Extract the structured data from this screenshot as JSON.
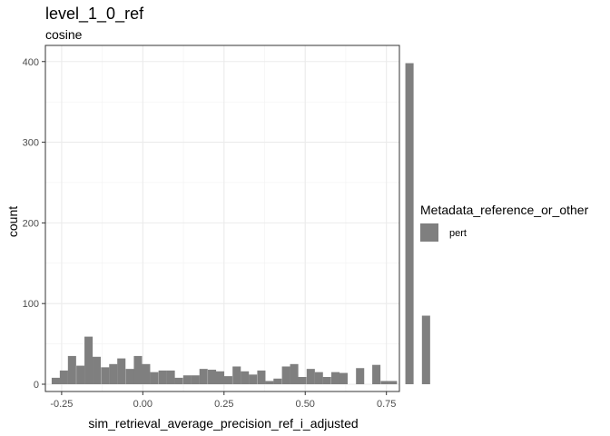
{
  "chart_data": {
    "type": "bar",
    "title": "level_1_0_ref",
    "subtitle": "cosine",
    "xlabel": "sim_retrieval_average_precision_ref_i_adjusted",
    "ylabel": "count",
    "xlim": [
      -0.3,
      0.79
    ],
    "ylim": [
      -9,
      420
    ],
    "xticks": [
      -0.25,
      0.0,
      0.25,
      0.5,
      0.75
    ],
    "xtick_labels": [
      "-0.25",
      "0.00",
      "0.25",
      "0.50",
      "0.75"
    ],
    "yticks": [
      0,
      100,
      200,
      300,
      400
    ],
    "ytick_labels": [
      "0",
      "100",
      "200",
      "300",
      "400"
    ],
    "grid": true,
    "bin_width": 0.0253,
    "legend": {
      "title": "Metadata_reference_or_other",
      "position": "right"
    },
    "series": [
      {
        "name": "pert",
        "color": "#7f7f7f",
        "bins": [
          {
            "x": -0.268,
            "y": 8
          },
          {
            "x": -0.243,
            "y": 17
          },
          {
            "x": -0.218,
            "y": 35
          },
          {
            "x": -0.192,
            "y": 23
          },
          {
            "x": -0.167,
            "y": 59
          },
          {
            "x": -0.142,
            "y": 34
          },
          {
            "x": -0.116,
            "y": 21
          },
          {
            "x": -0.091,
            "y": 25
          },
          {
            "x": -0.066,
            "y": 32
          },
          {
            "x": -0.04,
            "y": 19
          },
          {
            "x": -0.015,
            "y": 35
          },
          {
            "x": 0.01,
            "y": 25
          },
          {
            "x": 0.035,
            "y": 15
          },
          {
            "x": 0.061,
            "y": 17
          },
          {
            "x": 0.086,
            "y": 17
          },
          {
            "x": 0.111,
            "y": 8
          },
          {
            "x": 0.137,
            "y": 11
          },
          {
            "x": 0.162,
            "y": 11
          },
          {
            "x": 0.187,
            "y": 19
          },
          {
            "x": 0.213,
            "y": 18
          },
          {
            "x": 0.238,
            "y": 16
          },
          {
            "x": 0.263,
            "y": 10
          },
          {
            "x": 0.289,
            "y": 22
          },
          {
            "x": 0.314,
            "y": 16
          },
          {
            "x": 0.339,
            "y": 12
          },
          {
            "x": 0.365,
            "y": 17
          },
          {
            "x": 0.39,
            "y": 4
          },
          {
            "x": 0.415,
            "y": 7
          },
          {
            "x": 0.441,
            "y": 22
          },
          {
            "x": 0.466,
            "y": 25
          },
          {
            "x": 0.491,
            "y": 9
          },
          {
            "x": 0.517,
            "y": 19
          },
          {
            "x": 0.542,
            "y": 15
          },
          {
            "x": 0.567,
            "y": 9
          },
          {
            "x": 0.593,
            "y": 15
          },
          {
            "x": 0.618,
            "y": 14
          },
          {
            "x": 0.669,
            "y": 20
          },
          {
            "x": 0.719,
            "y": 24
          },
          {
            "x": 0.745,
            "y": 4
          },
          {
            "x": 0.77,
            "y": 4
          },
          {
            "x": 0.821,
            "y": 398
          },
          {
            "x": 0.872,
            "y": 85
          }
        ]
      }
    ]
  }
}
